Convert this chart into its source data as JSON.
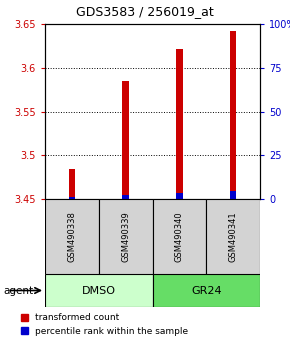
{
  "title": "GDS3583 / 256019_at",
  "categories": [
    "GSM490338",
    "GSM490339",
    "GSM490340",
    "GSM490341"
  ],
  "red_values": [
    3.484,
    3.585,
    3.622,
    3.642
  ],
  "blue_values": [
    3.452,
    3.455,
    3.457,
    3.459
  ],
  "bar_base": 3.45,
  "ylim": [
    3.45,
    3.65
  ],
  "y2lim": [
    0,
    100
  ],
  "yticks": [
    3.45,
    3.5,
    3.55,
    3.6,
    3.65
  ],
  "y2ticks": [
    0,
    25,
    50,
    75,
    100
  ],
  "y2ticklabels": [
    "0",
    "25",
    "50",
    "75",
    "100%"
  ],
  "sample_bg_color": "#d3d3d3",
  "dmso_color": "#ccffcc",
  "gr24_color": "#66dd66",
  "legend_red": "transformed count",
  "legend_blue": "percentile rank within the sample",
  "bar_width": 0.12,
  "red_color": "#cc0000",
  "blue_color": "#0000cc",
  "left_tick_color": "#cc0000",
  "right_tick_color": "#0000cc"
}
